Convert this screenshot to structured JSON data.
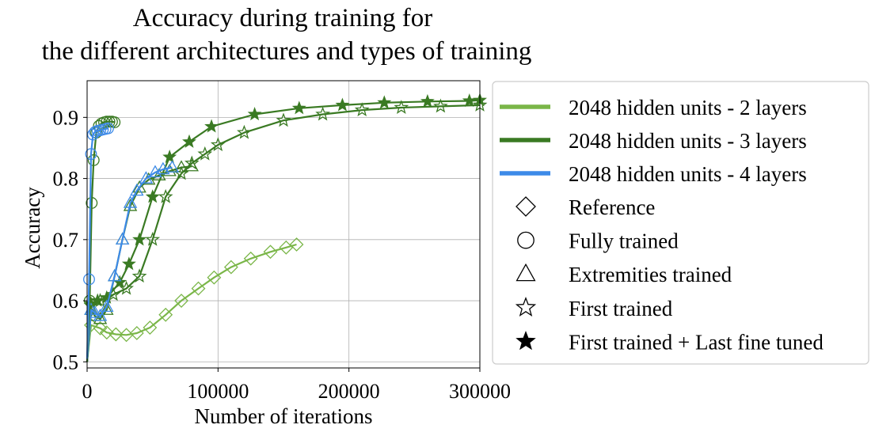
{
  "chart_data": {
    "type": "line",
    "title_lines": [
      "Accuracy during training for",
      "the different architectures and types of training"
    ],
    "xlabel": "Number of iterations",
    "ylabel": "Accuracy",
    "xlim": [
      0,
      300000
    ],
    "ylim": [
      0.49,
      0.96
    ],
    "xticks": [
      0,
      100000,
      200000,
      300000
    ],
    "yticks": [
      0.5,
      0.6,
      0.7,
      0.8,
      0.9
    ],
    "grid": true,
    "legend_position": "outside-right",
    "colors": {
      "light_green": "#7ab648",
      "dark_green": "#3a7a23",
      "blue": "#3d8ae8"
    },
    "legend": {
      "lines": [
        {
          "label": "2048 hidden units - 2 layers",
          "color": "#7ab648"
        },
        {
          "label": "2048 hidden units - 3 layers",
          "color": "#3a7a23"
        },
        {
          "label": "2048 hidden units - 4 layers",
          "color": "#3d8ae8"
        }
      ],
      "markers": [
        {
          "label": "Reference",
          "marker": "diamond-open"
        },
        {
          "label": "Fully trained",
          "marker": "circle-open"
        },
        {
          "label": "Extremities trained",
          "marker": "triangle-open"
        },
        {
          "label": "First trained",
          "marker": "star-open"
        },
        {
          "label": "First trained + Last fine tuned",
          "marker": "star-filled"
        }
      ]
    },
    "series": [
      {
        "color": "#7ab648",
        "marker": "diamond-open",
        "x": [
          0,
          3000,
          10000,
          15000,
          22000,
          30000,
          38000,
          48000,
          60000,
          72000,
          85000,
          97000,
          110000,
          125000,
          140000,
          152000,
          160000
        ],
        "y": [
          0.5,
          0.56,
          0.555,
          0.548,
          0.545,
          0.544,
          0.547,
          0.556,
          0.577,
          0.6,
          0.62,
          0.638,
          0.655,
          0.669,
          0.68,
          0.687,
          0.692
        ]
      },
      {
        "color": "#3a7a23",
        "marker": "star-filled",
        "x": [
          0,
          3000,
          8000,
          15000,
          25000,
          32000,
          40000,
          50000,
          63000,
          78000,
          95000,
          128000,
          162000,
          195000,
          227000,
          260000,
          292000,
          300000
        ],
        "y": [
          0.5,
          0.595,
          0.6,
          0.605,
          0.63,
          0.66,
          0.7,
          0.77,
          0.835,
          0.86,
          0.885,
          0.905,
          0.915,
          0.92,
          0.924,
          0.926,
          0.927,
          0.928
        ]
      },
      {
        "color": "#3a7a23",
        "marker": "star-open",
        "x": [
          0,
          3000,
          10000,
          20000,
          30000,
          40000,
          50000,
          60000,
          72000,
          80000,
          90000,
          100000,
          120000,
          150000,
          180000,
          210000,
          240000,
          270000,
          300000
        ],
        "y": [
          0.5,
          0.592,
          0.6,
          0.61,
          0.62,
          0.64,
          0.7,
          0.77,
          0.808,
          0.825,
          0.84,
          0.855,
          0.875,
          0.895,
          0.905,
          0.912,
          0.916,
          0.918,
          0.92
        ]
      },
      {
        "color": "#3a7a23",
        "marker": "triangle-open",
        "x": [
          0,
          3000,
          6000,
          10000,
          15000,
          21000,
          27000,
          33000,
          40000,
          47000,
          55000,
          63000,
          72000,
          80000
        ],
        "y": [
          0.5,
          0.585,
          0.575,
          0.57,
          0.585,
          0.64,
          0.7,
          0.755,
          0.785,
          0.798,
          0.805,
          0.812,
          0.818,
          0.82
        ]
      },
      {
        "color": "#3d8ae8",
        "marker": "triangle-open",
        "x": [
          0,
          3000,
          6000,
          10000,
          15000,
          21000,
          27000,
          33000,
          38000,
          45000,
          52000,
          58000,
          65000
        ],
        "y": [
          0.5,
          0.585,
          0.58,
          0.575,
          0.59,
          0.64,
          0.7,
          0.76,
          0.78,
          0.8,
          0.81,
          0.815,
          0.818
        ]
      },
      {
        "color": "#3a7a23",
        "marker": "circle-open",
        "x": [
          0,
          2000,
          3500,
          5000,
          7000,
          9000,
          11000,
          13000,
          15000,
          17000,
          19000,
          21000
        ],
        "y": [
          0.5,
          0.6,
          0.76,
          0.83,
          0.875,
          0.886,
          0.89,
          0.892,
          0.893,
          0.893,
          0.893,
          0.892
        ]
      },
      {
        "color": "#3d8ae8",
        "marker": "circle-open",
        "x": [
          0,
          1500,
          3000,
          4500,
          6000,
          8000,
          10000,
          12000,
          14000,
          16000
        ],
        "y": [
          0.505,
          0.635,
          0.84,
          0.872,
          0.876,
          0.878,
          0.879,
          0.88,
          0.881,
          0.882
        ]
      }
    ]
  }
}
